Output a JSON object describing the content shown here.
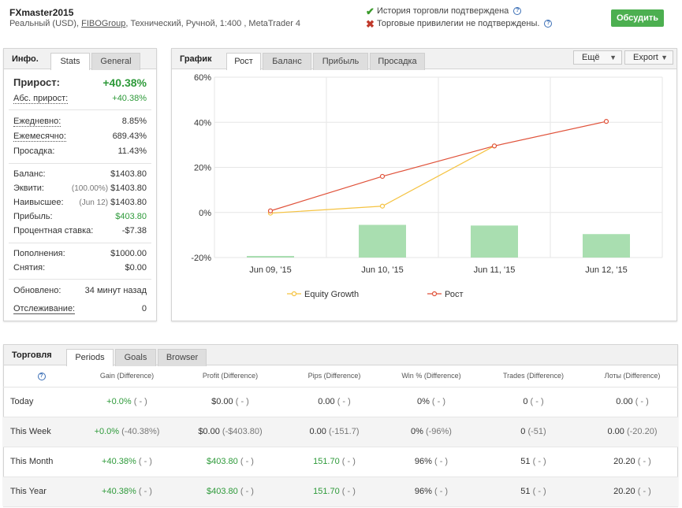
{
  "header": {
    "account_name": "FXmaster2015",
    "subtitle_pre": "Реальный (USD), ",
    "broker_link": "FIBOGroup",
    "subtitle_post": ", Технический, Ручной, 1:400 , MetaTrader 4",
    "verify_history": "История торговли подтверждена",
    "verify_privileges": "Торговые привилегии не подтверждены.",
    "discuss_button": "Обсудить",
    "help_mark": "?"
  },
  "info": {
    "title": "Инфо.",
    "tabs": [
      "Stats",
      "General"
    ],
    "gain_label": "Прирост:",
    "gain_value": "+40.38%",
    "abs_gain_label": "Абс. прирост:",
    "abs_gain_value": "+40.38%",
    "daily_label": "Ежедневно:",
    "daily_value": "8.85%",
    "monthly_label": "Ежемесячно:",
    "monthly_value": "689.43%",
    "drawdown_label": "Просадка:",
    "drawdown_value": "11.43%",
    "balance_label": "Баланс:",
    "balance_value": "$1403.80",
    "equity_label": "Эквити:",
    "equity_pct": "(100.00%)",
    "equity_value": "$1403.80",
    "highest_label": "Наивысшее:",
    "highest_date": "(Jun 12)",
    "highest_value": "$1403.80",
    "profit_label": "Прибыль:",
    "profit_value": "$403.80",
    "interest_label": "Процентная ставка:",
    "interest_value": "-$7.38",
    "deposits_label": "Пополнения:",
    "deposits_value": "$1000.00",
    "withdrawals_label": "Снятия:",
    "withdrawals_value": "$0.00",
    "updated_label": "Обновлено:",
    "updated_value": "34 минут назад",
    "tracking_label": "Отслеживание:",
    "tracking_value": "0"
  },
  "chart_panel": {
    "title": "График",
    "tabs": [
      "Рост",
      "Баланс",
      "Прибыль",
      "Просадка"
    ],
    "more_button": "Ещё",
    "export_button": "Export"
  },
  "chart_data": {
    "type": "line",
    "categories": [
      "Jun 09, '15",
      "Jun 10, '15",
      "Jun 11, '15",
      "Jun 12, '15"
    ],
    "ylim": [
      -20,
      60
    ],
    "yticks": [
      "60%",
      "40%",
      "20%",
      "0%",
      "-20%"
    ],
    "ytick_values": [
      60,
      40,
      20,
      0,
      -20
    ],
    "series": [
      {
        "name": "Equity Growth",
        "color": "#f5c342",
        "values": [
          -0.3,
          2.8,
          29.5,
          null
        ]
      },
      {
        "name": "Рост",
        "color": "#e0523a",
        "values": [
          0.7,
          16.0,
          29.5,
          40.38
        ]
      }
    ],
    "bars": {
      "color": "#a9deb0",
      "values": [
        -19.3,
        -5.5,
        -5.8,
        -9.6
      ]
    },
    "grid": true,
    "legend": "bottom"
  },
  "trading": {
    "title": "Торговля",
    "tabs": [
      "Periods",
      "Goals",
      "Browser"
    ],
    "columns": [
      "?",
      "Gain (Difference)",
      "Profit (Difference)",
      "Pips (Difference)",
      "Win % (Difference)",
      "Trades (Difference)",
      "Лоты (Difference)"
    ],
    "rows": [
      {
        "period": "Today",
        "gain": "+0.0%",
        "gain_diff": "( - )",
        "profit": "$0.00",
        "profit_diff": "( - )",
        "pips": "0.00",
        "pips_diff": "( - )",
        "win": "0%",
        "win_diff": "( - )",
        "trades": "0",
        "trades_diff": "( - )",
        "lots": "0.00",
        "lots_diff": "( - )"
      },
      {
        "period": "This Week",
        "gain": "+0.0%",
        "gain_diff": "(-40.38%)",
        "profit": "$0.00",
        "profit_diff": "(-$403.80)",
        "pips": "0.00",
        "pips_diff": "(-151.7)",
        "win": "0%",
        "win_diff": "(-96%)",
        "trades": "0",
        "trades_diff": "(-51)",
        "lots": "0.00",
        "lots_diff": "(-20.20)"
      },
      {
        "period": "This Month",
        "gain": "+40.38%",
        "gain_diff": "( - )",
        "profit": "$403.80",
        "profit_diff": "( - )",
        "pips": "151.70",
        "pips_diff": "( - )",
        "win": "96%",
        "win_diff": "( - )",
        "trades": "51",
        "trades_diff": "( - )",
        "lots": "20.20",
        "lots_diff": "( - )"
      },
      {
        "period": "This Year",
        "gain": "+40.38%",
        "gain_diff": "( - )",
        "profit": "$403.80",
        "profit_diff": "( - )",
        "pips": "151.70",
        "pips_diff": "( - )",
        "win": "96%",
        "win_diff": "( - )",
        "trades": "51",
        "trades_diff": "( - )",
        "lots": "20.20",
        "lots_diff": "( - )"
      }
    ]
  }
}
